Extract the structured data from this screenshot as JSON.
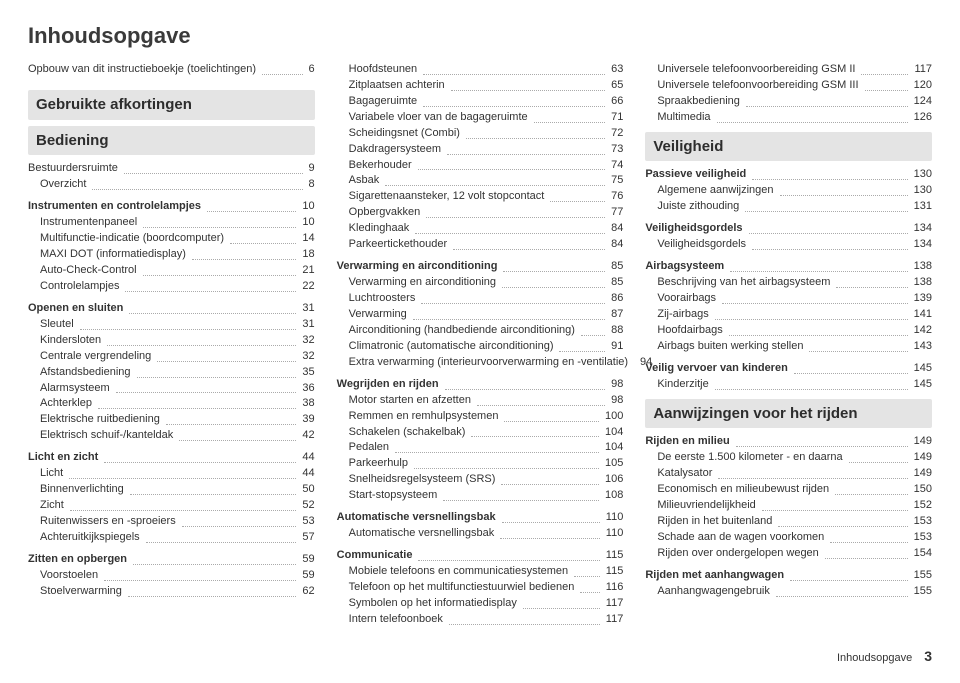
{
  "title": "Inhoudsopgave",
  "footer_label": "Inhoudsopgave",
  "footer_page": "3",
  "columns": [
    [
      {
        "type": "sub",
        "label": "Opbouw van dit instructieboekje (toelichtingen)",
        "page": "6"
      },
      {
        "type": "spacer"
      },
      {
        "type": "heading",
        "label": "Gebruikte afkortingen"
      },
      {
        "type": "heading",
        "label": "Bediening"
      },
      {
        "type": "sub",
        "label": "Bestuurdersruimte",
        "page": "9"
      },
      {
        "type": "sub",
        "indent": true,
        "label": "Overzicht",
        "page": "8"
      },
      {
        "type": "spacer"
      },
      {
        "type": "group",
        "label": "Instrumenten en controlelampjes",
        "page": "10"
      },
      {
        "type": "sub",
        "indent": true,
        "label": "Instrumentenpaneel",
        "page": "10"
      },
      {
        "type": "sub",
        "indent": true,
        "label": "Multifunctie-indicatie (boordcomputer)",
        "page": "14"
      },
      {
        "type": "sub",
        "indent": true,
        "label": "MAXI DOT (informatiedisplay)",
        "page": "18"
      },
      {
        "type": "sub",
        "indent": true,
        "label": "Auto-Check-Control",
        "page": "21"
      },
      {
        "type": "sub",
        "indent": true,
        "label": "Controlelampjes",
        "page": "22"
      },
      {
        "type": "spacer"
      },
      {
        "type": "group",
        "label": "Openen en sluiten",
        "page": "31"
      },
      {
        "type": "sub",
        "indent": true,
        "label": "Sleutel",
        "page": "31"
      },
      {
        "type": "sub",
        "indent": true,
        "label": "Kindersloten",
        "page": "32"
      },
      {
        "type": "sub",
        "indent": true,
        "label": "Centrale vergrendeling",
        "page": "32"
      },
      {
        "type": "sub",
        "indent": true,
        "label": "Afstandsbediening",
        "page": "35"
      },
      {
        "type": "sub",
        "indent": true,
        "label": "Alarmsysteem",
        "page": "36"
      },
      {
        "type": "sub",
        "indent": true,
        "label": "Achterklep",
        "page": "38"
      },
      {
        "type": "sub",
        "indent": true,
        "label": "Elektrische ruitbediening",
        "page": "39"
      },
      {
        "type": "sub",
        "indent": true,
        "label": "Elektrisch schuif-/kanteldak",
        "page": "42"
      },
      {
        "type": "spacer"
      },
      {
        "type": "group",
        "label": "Licht en zicht",
        "page": "44"
      },
      {
        "type": "sub",
        "indent": true,
        "label": "Licht",
        "page": "44"
      },
      {
        "type": "sub",
        "indent": true,
        "label": "Binnenverlichting",
        "page": "50"
      },
      {
        "type": "sub",
        "indent": true,
        "label": "Zicht",
        "page": "52"
      },
      {
        "type": "sub",
        "indent": true,
        "label": "Ruitenwissers en -sproeiers",
        "page": "53"
      },
      {
        "type": "sub",
        "indent": true,
        "label": "Achteruitkijkspiegels",
        "page": "57"
      },
      {
        "type": "spacer"
      },
      {
        "type": "group",
        "label": "Zitten en opbergen",
        "page": "59"
      },
      {
        "type": "sub",
        "indent": true,
        "label": "Voorstoelen",
        "page": "59"
      },
      {
        "type": "sub",
        "indent": true,
        "label": "Stoelverwarming",
        "page": "62"
      }
    ],
    [
      {
        "type": "sub",
        "indent": true,
        "label": "Hoofdsteunen",
        "page": "63"
      },
      {
        "type": "sub",
        "indent": true,
        "label": "Zitplaatsen achterin",
        "page": "65"
      },
      {
        "type": "sub",
        "indent": true,
        "label": "Bagageruimte",
        "page": "66"
      },
      {
        "type": "sub",
        "indent": true,
        "label": "Variabele vloer van de bagageruimte",
        "page": "71"
      },
      {
        "type": "sub",
        "indent": true,
        "label": "Scheidingsnet (Combi)",
        "page": "72"
      },
      {
        "type": "sub",
        "indent": true,
        "label": "Dakdragersysteem",
        "page": "73"
      },
      {
        "type": "sub",
        "indent": true,
        "label": "Bekerhouder",
        "page": "74"
      },
      {
        "type": "sub",
        "indent": true,
        "label": "Asbak",
        "page": "75"
      },
      {
        "type": "sub",
        "indent": true,
        "label": "Sigarettenaansteker, 12 volt stopcontact",
        "page": "76"
      },
      {
        "type": "sub",
        "indent": true,
        "label": "Opbergvakken",
        "page": "77"
      },
      {
        "type": "sub",
        "indent": true,
        "label": "Kledinghaak",
        "page": "84"
      },
      {
        "type": "sub",
        "indent": true,
        "label": "Parkeertickethouder",
        "page": "84"
      },
      {
        "type": "spacer"
      },
      {
        "type": "group",
        "label": "Verwarming en airconditioning",
        "page": "85"
      },
      {
        "type": "sub",
        "indent": true,
        "label": "Verwarming en airconditioning",
        "page": "85"
      },
      {
        "type": "sub",
        "indent": true,
        "label": "Luchtroosters",
        "page": "86"
      },
      {
        "type": "sub",
        "indent": true,
        "label": "Verwarming",
        "page": "87"
      },
      {
        "type": "sub",
        "indent": true,
        "label": "Airconditioning (handbediende airconditioning)",
        "page": "88"
      },
      {
        "type": "sub",
        "indent": true,
        "label": "Climatronic (automatische airconditioning)",
        "page": "91"
      },
      {
        "type": "sub",
        "indent": true,
        "label": "Extra verwarming (interieurvoorverwarming en -ventilatie)",
        "page": "94"
      },
      {
        "type": "spacer"
      },
      {
        "type": "group",
        "label": "Wegrijden en rijden",
        "page": "98"
      },
      {
        "type": "sub",
        "indent": true,
        "label": "Motor starten en afzetten",
        "page": "98"
      },
      {
        "type": "sub",
        "indent": true,
        "label": "Remmen en remhulpsystemen",
        "page": "100"
      },
      {
        "type": "sub",
        "indent": true,
        "label": "Schakelen (schakelbak)",
        "page": "104"
      },
      {
        "type": "sub",
        "indent": true,
        "label": "Pedalen",
        "page": "104"
      },
      {
        "type": "sub",
        "indent": true,
        "label": "Parkeerhulp",
        "page": "105"
      },
      {
        "type": "sub",
        "indent": true,
        "label": "Snelheidsregelsysteem (SRS)",
        "page": "106"
      },
      {
        "type": "sub",
        "indent": true,
        "label": "Start-stopsysteem",
        "page": "108"
      },
      {
        "type": "spacer"
      },
      {
        "type": "group",
        "label": "Automatische versnellingsbak",
        "page": "110"
      },
      {
        "type": "sub",
        "indent": true,
        "label": "Automatische versnellingsbak",
        "page": "110"
      },
      {
        "type": "spacer"
      },
      {
        "type": "group",
        "label": "Communicatie",
        "page": "115"
      },
      {
        "type": "sub",
        "indent": true,
        "label": "Mobiele telefoons en communicatiesystemen",
        "page": "115"
      },
      {
        "type": "sub",
        "indent": true,
        "label": "Telefoon op het multifunctiestuurwiel bedienen",
        "page": "116"
      },
      {
        "type": "sub",
        "indent": true,
        "label": "Symbolen op het informatiedisplay",
        "page": "117"
      },
      {
        "type": "sub",
        "indent": true,
        "label": "Intern telefoonboek",
        "page": "117"
      }
    ],
    [
      {
        "type": "sub",
        "indent": true,
        "label": "Universele telefoonvoorbereiding GSM II",
        "page": "117"
      },
      {
        "type": "sub",
        "indent": true,
        "label": "Universele telefoonvoorbereiding GSM III",
        "page": "120"
      },
      {
        "type": "sub",
        "indent": true,
        "label": "Spraakbediening",
        "page": "124"
      },
      {
        "type": "sub",
        "indent": true,
        "label": "Multimedia",
        "page": "126"
      },
      {
        "type": "heading",
        "label": "Veiligheid"
      },
      {
        "type": "group",
        "label": "Passieve veiligheid",
        "page": "130"
      },
      {
        "type": "sub",
        "indent": true,
        "label": "Algemene aanwijzingen",
        "page": "130"
      },
      {
        "type": "sub",
        "indent": true,
        "label": "Juiste zithouding",
        "page": "131"
      },
      {
        "type": "spacer"
      },
      {
        "type": "group",
        "label": "Veiligheidsgordels",
        "page": "134"
      },
      {
        "type": "sub",
        "indent": true,
        "label": "Veiligheidsgordels",
        "page": "134"
      },
      {
        "type": "spacer"
      },
      {
        "type": "group",
        "label": "Airbagsysteem",
        "page": "138"
      },
      {
        "type": "sub",
        "indent": true,
        "label": "Beschrijving van het airbagsysteem",
        "page": "138"
      },
      {
        "type": "sub",
        "indent": true,
        "label": "Voorairbags",
        "page": "139"
      },
      {
        "type": "sub",
        "indent": true,
        "label": "Zij-airbags",
        "page": "141"
      },
      {
        "type": "sub",
        "indent": true,
        "label": "Hoofdairbags",
        "page": "142"
      },
      {
        "type": "sub",
        "indent": true,
        "label": "Airbags buiten werking stellen",
        "page": "143"
      },
      {
        "type": "spacer"
      },
      {
        "type": "group",
        "label": "Veilig vervoer van kinderen",
        "page": "145"
      },
      {
        "type": "sub",
        "indent": true,
        "label": "Kinderzitje",
        "page": "145"
      },
      {
        "type": "heading",
        "label": "Aanwijzingen voor het rijden"
      },
      {
        "type": "group",
        "label": "Rijden en milieu",
        "page": "149"
      },
      {
        "type": "sub",
        "indent": true,
        "label": "De eerste 1.500 kilometer - en daarna",
        "page": "149"
      },
      {
        "type": "sub",
        "indent": true,
        "label": "Katalysator",
        "page": "149"
      },
      {
        "type": "sub",
        "indent": true,
        "label": "Economisch en milieubewust rijden",
        "page": "150"
      },
      {
        "type": "sub",
        "indent": true,
        "label": "Milieuvriendelijkheid",
        "page": "152"
      },
      {
        "type": "sub",
        "indent": true,
        "label": "Rijden in het buitenland",
        "page": "153"
      },
      {
        "type": "sub",
        "indent": true,
        "label": "Schade aan de wagen voorkomen",
        "page": "153"
      },
      {
        "type": "sub",
        "indent": true,
        "label": "Rijden over ondergelopen wegen",
        "page": "154"
      },
      {
        "type": "spacer"
      },
      {
        "type": "group",
        "label": "Rijden met aanhangwagen",
        "page": "155"
      },
      {
        "type": "sub",
        "indent": true,
        "label": "Aanhangwagengebruik",
        "page": "155"
      }
    ]
  ]
}
